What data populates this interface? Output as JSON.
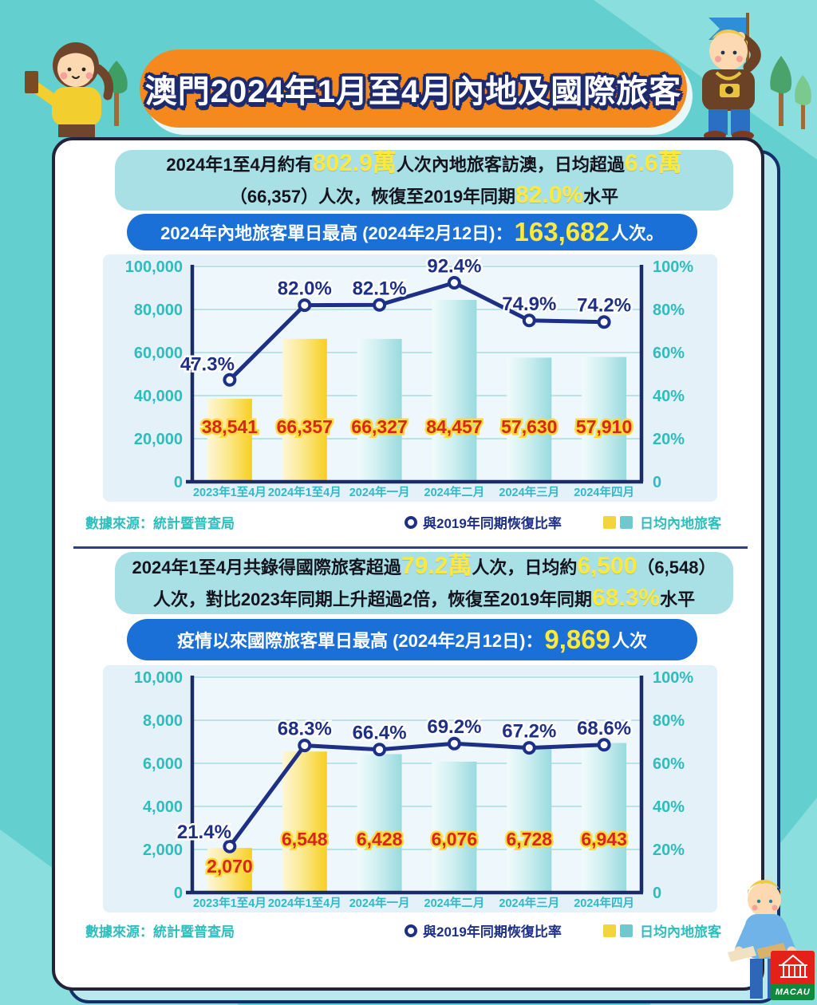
{
  "page": {
    "title": "澳門2024年1月至4月內地及國際旅客"
  },
  "logo": {
    "text": "MACAU"
  },
  "colors": {
    "background": "#63cfcf",
    "banner_orange": "#f6891e",
    "info_box": "#a9e0e5",
    "highlight_yellow": "#ffe93d",
    "pill_blue": "#1b70d8",
    "line_navy": "#1e3086",
    "axis_navy": "#1a2b65",
    "bar_yellow": "#f7cf22",
    "bar_teal": "#99dade",
    "value_red": "#d7261d",
    "value_outline": "#ffd83a",
    "tick_teal": "#2fbcbc",
    "xlabel_teal": "#2fb9c9",
    "grid_teal": "#b9e3e7"
  },
  "section1": {
    "summary": {
      "line1": [
        {
          "t": "2024年1至4月約有"
        },
        {
          "t": "802.9萬",
          "hl": true
        },
        {
          "t": "人次內地旅客訪澳，日均超過"
        },
        {
          "t": "6.6萬",
          "hl": true
        }
      ],
      "line2": [
        {
          "t": "（66,357）人次，恢復至2019年同期"
        },
        {
          "t": "82.0%",
          "hl": true
        },
        {
          "t": "水平"
        }
      ]
    },
    "highlight": [
      {
        "t": "2024年內地旅客單日最高 (2024年2月12日)："
      },
      {
        "t": "163,682",
        "hl": true
      },
      {
        "t": "人次。"
      }
    ],
    "footer": {
      "source": "數據來源：統計暨普查局",
      "line_legend": "與2019年同期恢復比率",
      "bar_legend": "日均內地旅客"
    }
  },
  "section2": {
    "summary": {
      "line1": [
        {
          "t": "2024年1至4月共錄得國際旅客超過"
        },
        {
          "t": "79.2萬",
          "hl": true
        },
        {
          "t": "人次，日均約"
        },
        {
          "t": "6,500",
          "hl": true
        },
        {
          "t": "（6,548）"
        }
      ],
      "line2": [
        {
          "t": "人次，對比2023年同期上升超過2倍，恢復至2019年同期"
        },
        {
          "t": "68.3%",
          "hl": true
        },
        {
          "t": "水平"
        }
      ]
    },
    "highlight": [
      {
        "t": "疫情以來國際旅客單日最高 (2024年2月12日)："
      },
      {
        "t": "9,869",
        "hl": true
      },
      {
        "t": "人次"
      }
    ],
    "footer": {
      "source": "數據來源：統計暨普查局",
      "line_legend": "與2019年同期恢復比率",
      "bar_legend": "日均內地旅客"
    }
  },
  "chart_data": [
    {
      "type": "bar+line",
      "categories": [
        "2023年1至4月",
        "2024年1至4月",
        "2024年一月",
        "2024年二月",
        "2024年三月",
        "2024年四月"
      ],
      "series": [
        {
          "name": "日均內地旅客",
          "type": "bar",
          "values": [
            38541,
            66357,
            66327,
            84457,
            57630,
            57910
          ],
          "labels": [
            "38,541",
            "66,357",
            "66,327",
            "84,457",
            "57,630",
            "57,910"
          ],
          "bar_colors": [
            "yellow",
            "yellow",
            "teal",
            "teal",
            "teal",
            "teal"
          ]
        },
        {
          "name": "與2019年同期恢復比率",
          "type": "line",
          "values": [
            47.3,
            82.0,
            82.1,
            92.4,
            74.9,
            74.2
          ],
          "labels": [
            "47.3%",
            "82.0%",
            "82.1%",
            "92.4%",
            "74.9%",
            "74.2%"
          ]
        }
      ],
      "y_left": {
        "ticks": [
          "100,000",
          "80,000",
          "60,000",
          "40,000",
          "20,000",
          "0"
        ],
        "max": 100000
      },
      "y_right": {
        "ticks": [
          "100%",
          "80%",
          "60%",
          "40%",
          "20%",
          "0"
        ],
        "max": 100
      },
      "grid": true,
      "legend_position": "bottom"
    },
    {
      "type": "bar+line",
      "categories": [
        "2023年1至4月",
        "2024年1至4月",
        "2024年一月",
        "2024年二月",
        "2024年三月",
        "2024年四月"
      ],
      "series": [
        {
          "name": "日均內地旅客",
          "type": "bar",
          "values": [
            2070,
            6548,
            6428,
            6076,
            6728,
            6943
          ],
          "labels": [
            "2,070",
            "6,548",
            "6,428",
            "6,076",
            "6,728",
            "6,943"
          ],
          "bar_colors": [
            "yellow",
            "yellow",
            "teal",
            "teal",
            "teal",
            "teal"
          ]
        },
        {
          "name": "與2019年同期恢復比率",
          "type": "line",
          "values": [
            21.4,
            68.3,
            66.4,
            69.2,
            67.2,
            68.6
          ],
          "labels": [
            "21.4%",
            "68.3%",
            "66.4%",
            "69.2%",
            "67.2%",
            "68.6%"
          ]
        }
      ],
      "y_left": {
        "ticks": [
          "10,000",
          "8,000",
          "6,000",
          "4,000",
          "2,000",
          "0"
        ],
        "max": 10000
      },
      "y_right": {
        "ticks": [
          "100%",
          "80%",
          "60%",
          "40%",
          "20%",
          "0"
        ],
        "max": 100
      },
      "grid": true,
      "legend_position": "bottom"
    }
  ]
}
